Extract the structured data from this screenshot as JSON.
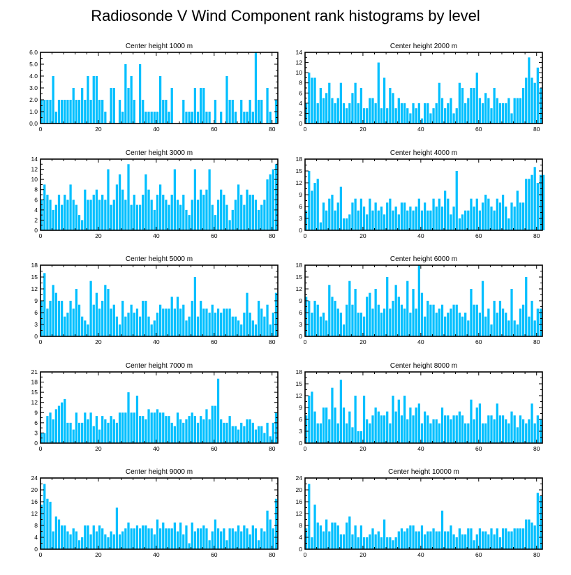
{
  "chart_data": {
    "title": "Radiosonde V Wind Component rank histograms by level",
    "type": "bar",
    "bar_color": "#00BFFF",
    "x_ticks": [
      0,
      20,
      40,
      60,
      80
    ],
    "xlim": [
      0,
      82
    ],
    "panels": [
      {
        "title": "Center height 1000 m",
        "ylim": [
          0,
          6
        ],
        "y_ticks": [
          0,
          1,
          2,
          3,
          4,
          5,
          6
        ],
        "y_tick_labels": [
          "0.0",
          "1.0",
          "2.0",
          "3.0",
          "4.0",
          "5.0",
          "6.0"
        ],
        "values": [
          2,
          2,
          2,
          2,
          4,
          1,
          2,
          2,
          2,
          2,
          2,
          3,
          2,
          2,
          3,
          2,
          4,
          2,
          4,
          4,
          2,
          2,
          1,
          0,
          3,
          3,
          0,
          2,
          1,
          5,
          3,
          4,
          2,
          0,
          5,
          2,
          1,
          1,
          1,
          1,
          1,
          4,
          2,
          2,
          1,
          3,
          0,
          0,
          0,
          2,
          1,
          1,
          1,
          3,
          1,
          3,
          3,
          1,
          1,
          0,
          2,
          0,
          1,
          0,
          4,
          2,
          2,
          1,
          0,
          2,
          1,
          1,
          2,
          1,
          6,
          2,
          2,
          0,
          3,
          1,
          0,
          2
        ]
      },
      {
        "title": "Center height 2000 m",
        "ylim": [
          0,
          14
        ],
        "y_ticks": [
          0,
          2,
          4,
          6,
          8,
          10,
          12,
          14
        ],
        "y_tick_labels": [
          "0",
          "2",
          "4",
          "6",
          "8",
          "10",
          "12",
          "14"
        ],
        "values": [
          4,
          10,
          9,
          9,
          4,
          7,
          5,
          6,
          8,
          5,
          4,
          5,
          8,
          4,
          3,
          4,
          6,
          8,
          4,
          7,
          3,
          3,
          5,
          5,
          4,
          12,
          3,
          9,
          3,
          7,
          6,
          3,
          5,
          4,
          4,
          3,
          2,
          4,
          3,
          4,
          1,
          4,
          4,
          2,
          3,
          4,
          8,
          5,
          3,
          4,
          5,
          2,
          3,
          8,
          7,
          4,
          5,
          7,
          7,
          10,
          5,
          4,
          6,
          5,
          3,
          7,
          5,
          4,
          4,
          4,
          5,
          2,
          5,
          5,
          5,
          7,
          9,
          13,
          9,
          8,
          11,
          7
        ]
      },
      {
        "title": "Center height 3000 m",
        "ylim": [
          0,
          14
        ],
        "y_ticks": [
          0,
          2,
          4,
          6,
          8,
          10,
          12,
          14
        ],
        "y_tick_labels": [
          "0",
          "2",
          "4",
          "6",
          "8",
          "10",
          "12",
          "14"
        ],
        "values": [
          6,
          9,
          7,
          6,
          4,
          5,
          7,
          5,
          7,
          6,
          9,
          6,
          5,
          3,
          2,
          8,
          6,
          6,
          7,
          8,
          6,
          7,
          6,
          12,
          5,
          6,
          9,
          11,
          8,
          6,
          13,
          5,
          7,
          5,
          5,
          7,
          11,
          8,
          6,
          4,
          7,
          9,
          7,
          6,
          5,
          7,
          12,
          6,
          5,
          7,
          4,
          3,
          6,
          12,
          6,
          8,
          7,
          8,
          12,
          5,
          3,
          6,
          8,
          7,
          5,
          2,
          4,
          6,
          9,
          7,
          5,
          8,
          7,
          7,
          6,
          4,
          5,
          6,
          10,
          11,
          12,
          13
        ]
      },
      {
        "title": "Center height 4000 m",
        "ylim": [
          0,
          18
        ],
        "y_ticks": [
          0,
          3,
          6,
          9,
          12,
          15,
          18
        ],
        "y_tick_labels": [
          "0",
          "3",
          "6",
          "9",
          "12",
          "15",
          "18"
        ],
        "values": [
          5,
          15,
          10,
          12,
          13,
          2,
          7,
          5,
          8,
          9,
          5,
          7,
          11,
          3,
          3,
          4,
          7,
          8,
          5,
          8,
          6,
          4,
          8,
          5,
          7,
          5,
          6,
          4,
          7,
          8,
          5,
          6,
          4,
          7,
          7,
          5,
          6,
          5,
          6,
          8,
          5,
          7,
          5,
          5,
          8,
          6,
          8,
          6,
          10,
          8,
          4,
          6,
          15,
          3,
          4,
          5,
          5,
          8,
          6,
          8,
          5,
          7,
          9,
          8,
          6,
          5,
          8,
          7,
          9,
          6,
          3,
          7,
          6,
          10,
          7,
          7,
          13,
          13,
          14,
          16,
          12,
          14,
          14
        ]
      },
      {
        "title": "Center height 5000 m",
        "ylim": [
          0,
          18
        ],
        "y_ticks": [
          0,
          3,
          6,
          9,
          12,
          15,
          18
        ],
        "y_tick_labels": [
          "0",
          "3",
          "6",
          "9",
          "12",
          "15",
          "18"
        ],
        "values": [
          9,
          16,
          7,
          9,
          13,
          11,
          9,
          9,
          5,
          6,
          9,
          7,
          12,
          8,
          5,
          4,
          3,
          14,
          8,
          11,
          7,
          9,
          13,
          12,
          7,
          8,
          5,
          3,
          9,
          5,
          6,
          8,
          6,
          7,
          5,
          9,
          9,
          5,
          3,
          4,
          6,
          8,
          7,
          7,
          7,
          10,
          7,
          10,
          7,
          8,
          4,
          5,
          9,
          15,
          5,
          9,
          7,
          7,
          6,
          8,
          6,
          7,
          6,
          7,
          7,
          7,
          5,
          5,
          4,
          3,
          6,
          11,
          6,
          4,
          3,
          9,
          7,
          5,
          8,
          3,
          6,
          11
        ]
      },
      {
        "title": "Center height 6000 m",
        "ylim": [
          0,
          18
        ],
        "y_ticks": [
          0,
          3,
          6,
          9,
          12,
          15,
          18
        ],
        "y_tick_labels": [
          "0",
          "3",
          "6",
          "9",
          "12",
          "15",
          "18"
        ],
        "values": [
          10,
          9,
          6,
          9,
          8,
          5,
          6,
          4,
          13,
          10,
          9,
          7,
          6,
          3,
          8,
          14,
          8,
          12,
          6,
          6,
          5,
          10,
          11,
          7,
          12,
          8,
          6,
          7,
          15,
          7,
          9,
          13,
          10,
          8,
          7,
          14,
          6,
          12,
          7,
          18,
          11,
          5,
          9,
          8,
          8,
          6,
          7,
          8,
          5,
          6,
          7,
          8,
          8,
          6,
          5,
          6,
          4,
          12,
          8,
          8,
          6,
          14,
          5,
          7,
          3,
          9,
          6,
          9,
          7,
          6,
          4,
          12,
          4,
          3,
          7,
          8,
          15,
          5,
          9,
          4,
          7,
          7
        ]
      },
      {
        "title": "Center height 7000 m",
        "ylim": [
          0,
          21
        ],
        "y_ticks": [
          0,
          3,
          6,
          9,
          12,
          15,
          18,
          21
        ],
        "y_tick_labels": [
          "0",
          "3",
          "6",
          "9",
          "12",
          "15",
          "18",
          "21"
        ],
        "values": [
          3,
          3,
          8,
          9,
          7,
          10,
          11,
          12,
          13,
          6,
          6,
          4,
          9,
          6,
          6,
          9,
          7,
          9,
          5,
          8,
          4,
          8,
          7,
          6,
          8,
          7,
          6,
          9,
          9,
          9,
          15,
          9,
          9,
          14,
          8,
          8,
          7,
          10,
          9,
          9,
          10,
          9,
          9,
          8,
          8,
          6,
          5,
          9,
          7,
          6,
          7,
          8,
          9,
          8,
          6,
          8,
          7,
          10,
          7,
          11,
          11,
          19,
          7,
          6,
          6,
          8,
          5,
          5,
          4,
          6,
          5,
          7,
          7,
          6,
          4,
          5,
          5,
          3,
          6,
          2,
          6,
          9
        ]
      },
      {
        "title": "Center height 8000 m",
        "ylim": [
          0,
          18
        ],
        "y_ticks": [
          0,
          3,
          6,
          9,
          12,
          15,
          18
        ],
        "y_tick_labels": [
          "0",
          "3",
          "6",
          "9",
          "12",
          "15",
          "18"
        ],
        "values": [
          7,
          12,
          13,
          8,
          5,
          5,
          9,
          9,
          6,
          14,
          9,
          5,
          16,
          9,
          5,
          8,
          4,
          12,
          3,
          3,
          12,
          6,
          5,
          7,
          9,
          8,
          7,
          7,
          8,
          5,
          12,
          8,
          11,
          7,
          12,
          6,
          9,
          7,
          9,
          10,
          5,
          8,
          7,
          5,
          6,
          6,
          5,
          9,
          7,
          7,
          6,
          7,
          7,
          8,
          7,
          5,
          5,
          11,
          6,
          9,
          10,
          5,
          5,
          7,
          7,
          6,
          10,
          7,
          7,
          6,
          5,
          8,
          7,
          4,
          7,
          6,
          5,
          6,
          10,
          5,
          7,
          6
        ]
      },
      {
        "title": "Center height 9000 m",
        "ylim": [
          0,
          24
        ],
        "y_ticks": [
          0,
          4,
          8,
          12,
          16,
          20,
          24
        ],
        "y_tick_labels": [
          "0",
          "4",
          "8",
          "12",
          "16",
          "20",
          "24"
        ],
        "values": [
          15,
          22,
          17,
          16,
          6,
          11,
          10,
          8,
          8,
          6,
          5,
          7,
          6,
          3,
          4,
          8,
          8,
          5,
          8,
          6,
          8,
          7,
          5,
          4,
          6,
          5,
          14,
          5,
          6,
          7,
          9,
          7,
          7,
          8,
          7,
          8,
          8,
          7,
          7,
          5,
          10,
          7,
          9,
          7,
          7,
          7,
          9,
          6,
          9,
          5,
          8,
          2,
          9,
          6,
          7,
          7,
          8,
          7,
          3,
          6,
          10,
          7,
          6,
          7,
          3,
          7,
          7,
          6,
          8,
          6,
          8,
          7,
          5,
          8,
          7,
          3,
          7,
          6,
          13,
          10,
          7,
          17
        ]
      },
      {
        "title": "Center height 10000 m",
        "ylim": [
          0,
          24
        ],
        "y_ticks": [
          0,
          4,
          8,
          12,
          16,
          20,
          24
        ],
        "y_tick_labels": [
          "0",
          "4",
          "8",
          "12",
          "16",
          "20",
          "24"
        ],
        "values": [
          7,
          22,
          4,
          15,
          9,
          8,
          6,
          10,
          6,
          9,
          9,
          8,
          5,
          5,
          9,
          11,
          5,
          8,
          4,
          8,
          4,
          4,
          5,
          7,
          5,
          6,
          4,
          10,
          4,
          4,
          3,
          4,
          6,
          7,
          6,
          7,
          8,
          8,
          6,
          6,
          8,
          5,
          6,
          6,
          7,
          6,
          6,
          13,
          6,
          6,
          8,
          5,
          4,
          7,
          5,
          5,
          7,
          7,
          3,
          5,
          7,
          6,
          6,
          5,
          7,
          5,
          7,
          4,
          7,
          7,
          6,
          6,
          7,
          7,
          7,
          7,
          10,
          10,
          9,
          8,
          19,
          18
        ]
      }
    ]
  }
}
